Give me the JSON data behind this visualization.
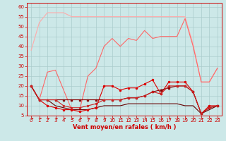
{
  "x": [
    0,
    1,
    2,
    3,
    4,
    5,
    6,
    7,
    8,
    9,
    10,
    11,
    12,
    13,
    14,
    15,
    16,
    17,
    18,
    19,
    20,
    21,
    22,
    23
  ],
  "line1": [
    38,
    52,
    57,
    57,
    57,
    55,
    55,
    55,
    55,
    55,
    55,
    55,
    55,
    55,
    55,
    55,
    55,
    55,
    55,
    55,
    41,
    22,
    22,
    29
  ],
  "line2": [
    20,
    13,
    27,
    28,
    18,
    8,
    8,
    25,
    29,
    40,
    44,
    40,
    44,
    43,
    48,
    44,
    45,
    45,
    45,
    54,
    40,
    22,
    22,
    29
  ],
  "line3": [
    20,
    13,
    10,
    9,
    8,
    8,
    7,
    8,
    9,
    20,
    20,
    18,
    19,
    19,
    21,
    23,
    16,
    22,
    22,
    22,
    17,
    6,
    10,
    10
  ],
  "line4": [
    20,
    13,
    13,
    13,
    13,
    13,
    13,
    13,
    13,
    13,
    13,
    13,
    14,
    14,
    15,
    17,
    18,
    19,
    20,
    20,
    17,
    6,
    9,
    10
  ],
  "line5": [
    20,
    13,
    13,
    13,
    10,
    9,
    9,
    10,
    11,
    13,
    13,
    13,
    14,
    14,
    15,
    17,
    16,
    20,
    20,
    20,
    17,
    6,
    9,
    10
  ],
  "line6": [
    20,
    13,
    13,
    10,
    9,
    8,
    8,
    8,
    9,
    10,
    10,
    10,
    11,
    11,
    11,
    11,
    11,
    11,
    11,
    10,
    10,
    6,
    8,
    10
  ],
  "bg_color": "#cce8e8",
  "grid_color": "#aacccc",
  "line1_color": "#ffaaaa",
  "line2_color": "#ff6666",
  "line3_color": "#dd0000",
  "line4_color": "#880000",
  "line5_color": "#cc2222",
  "line6_color": "#660000",
  "arrow_color": "#cc0000",
  "axis_color": "#cc0000",
  "xlabel": "Vent moyen/en rafales ( km/h )",
  "xlabel_fontsize": 6,
  "tick_fontsize": 5,
  "ylim": [
    5,
    62
  ],
  "yticks": [
    5,
    10,
    15,
    20,
    25,
    30,
    35,
    40,
    45,
    50,
    55,
    60
  ],
  "xticks": [
    0,
    1,
    2,
    3,
    4,
    5,
    6,
    7,
    8,
    9,
    10,
    11,
    12,
    13,
    14,
    15,
    16,
    17,
    18,
    19,
    20,
    21,
    22,
    23
  ]
}
